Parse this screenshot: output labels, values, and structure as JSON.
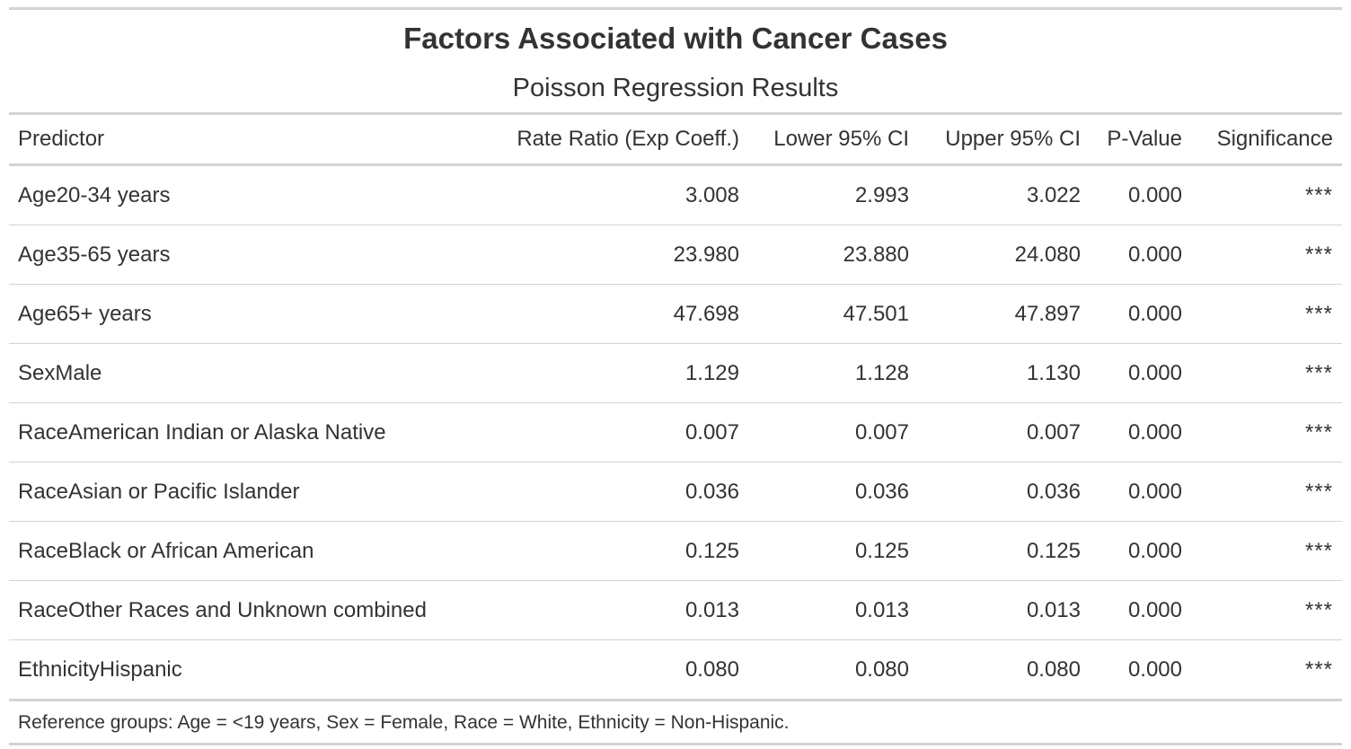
{
  "header": {
    "title": "Factors Associated with Cancer Cases",
    "subtitle": "Poisson Regression Results"
  },
  "table": {
    "columns": [
      "Predictor",
      "Rate Ratio (Exp Coeff.)",
      "Lower 95% CI",
      "Upper 95% CI",
      "P-Value",
      "Significance"
    ],
    "rows": [
      [
        "Age20-34 years",
        "3.008",
        "2.993",
        "3.022",
        "0.000",
        "***"
      ],
      [
        "Age35-65 years",
        "23.980",
        "23.880",
        "24.080",
        "0.000",
        "***"
      ],
      [
        "Age65+ years",
        "47.698",
        "47.501",
        "47.897",
        "0.000",
        "***"
      ],
      [
        "SexMale",
        "1.129",
        "1.128",
        "1.130",
        "0.000",
        "***"
      ],
      [
        "RaceAmerican Indian or Alaska Native",
        "0.007",
        "0.007",
        "0.007",
        "0.000",
        "***"
      ],
      [
        "RaceAsian or Pacific Islander",
        "0.036",
        "0.036",
        "0.036",
        "0.000",
        "***"
      ],
      [
        "RaceBlack or African American",
        "0.125",
        "0.125",
        "0.125",
        "0.000",
        "***"
      ],
      [
        "RaceOther Races and Unknown combined",
        "0.013",
        "0.013",
        "0.013",
        "0.000",
        "***"
      ],
      [
        "EthnicityHispanic",
        "0.080",
        "0.080",
        "0.080",
        "0.000",
        "***"
      ]
    ]
  },
  "footnote": "Reference groups: Age = <19 years, Sex = Female, Race = White, Ethnicity = Non-Hispanic."
}
